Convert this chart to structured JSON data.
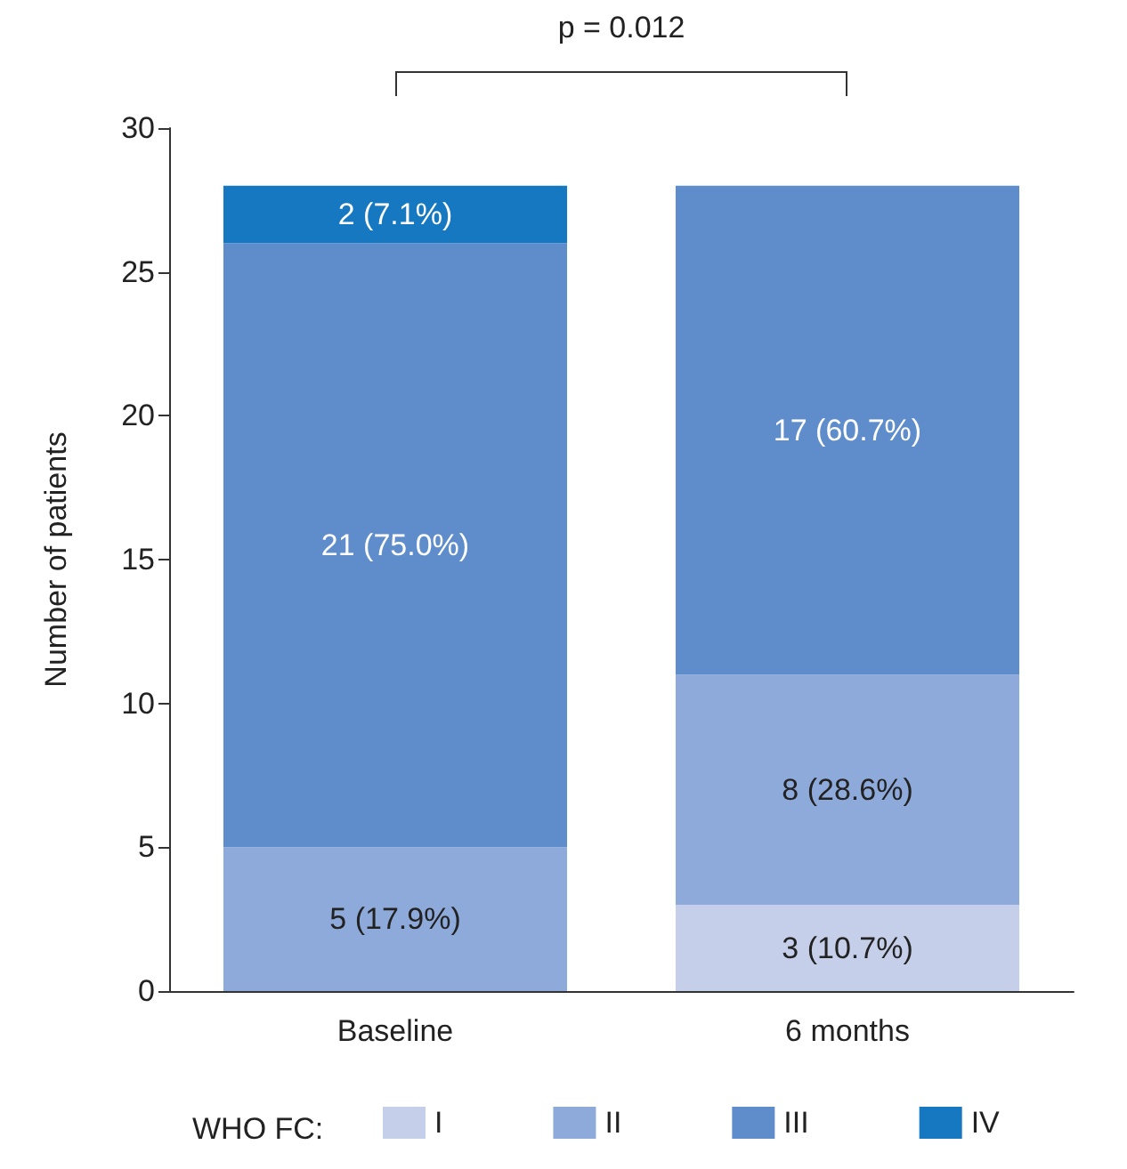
{
  "chart_data": {
    "type": "bar",
    "stacked": true,
    "categories": [
      "Baseline",
      "6 months"
    ],
    "ylabel": "Number of patients",
    "ylim": [
      0,
      30
    ],
    "yticks": [
      0,
      5,
      10,
      15,
      20,
      25,
      30
    ],
    "grid": false,
    "legend": "bottom",
    "legend_title": "WHO FC:",
    "annotations": [
      "p = 0.012"
    ],
    "series": [
      {
        "name": "I",
        "color": "#c5cfe9",
        "values": [
          0,
          3
        ],
        "value_labels": [
          null,
          "3 (10.7%)"
        ]
      },
      {
        "name": "II",
        "color": "#8eaadb",
        "values": [
          5,
          8
        ],
        "value_labels": [
          "5 (17.9%)",
          "8 (28.6%)"
        ]
      },
      {
        "name": "III",
        "color": "#5f8dcb",
        "values": [
          21,
          17
        ],
        "value_labels": [
          "21 (75.0%)",
          "17 (60.7%)"
        ]
      },
      {
        "name": "IV",
        "color": "#1578c1",
        "values": [
          2,
          0
        ],
        "value_labels": [
          "2 (7.1%)",
          null
        ]
      }
    ]
  }
}
